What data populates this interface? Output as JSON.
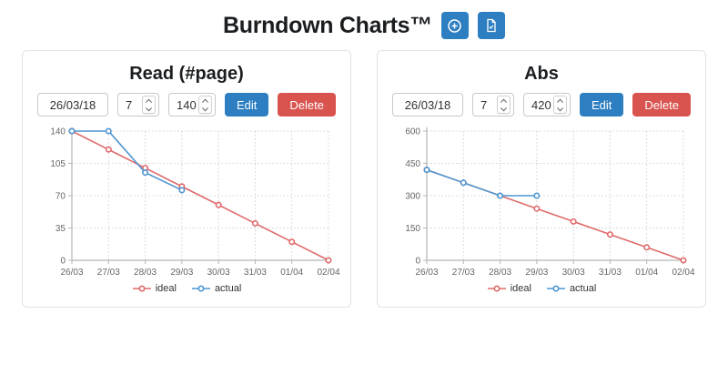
{
  "header": {
    "title": "Burndown Charts™",
    "buttons": [
      {
        "name": "add-chart",
        "icon": "plus-circle-icon"
      },
      {
        "name": "report",
        "icon": "file-check-icon"
      }
    ]
  },
  "colors": {
    "primary": "#2d7fc1",
    "danger": "#d9534f",
    "ideal": "#e06a6a",
    "actual": "#4e96d2",
    "grid": "#dcdcdc",
    "axis": "#b5b5b5",
    "tick_text": "#666666"
  },
  "cards": [
    {
      "title": "Read (#page)",
      "start_date": "26/03/18",
      "days": "7",
      "total": "140",
      "edit_label": "Edit",
      "delete_label": "Delete"
    },
    {
      "title": "Abs",
      "start_date": "26/03/18",
      "days": "7",
      "total": "420",
      "edit_label": "Edit",
      "delete_label": "Delete"
    }
  ],
  "chart_data": [
    {
      "type": "line",
      "title": "Read (#page)",
      "x": [
        "26/03",
        "27/03",
        "28/03",
        "29/03",
        "30/03",
        "31/03",
        "01/04",
        "02/04"
      ],
      "series": [
        {
          "name": "ideal",
          "color": "#e06a6a",
          "values": [
            140,
            120,
            100,
            80,
            60,
            40,
            20,
            0
          ]
        },
        {
          "name": "actual",
          "color": "#4e96d2",
          "values": [
            140,
            140,
            95,
            76
          ]
        }
      ],
      "ylim": [
        0,
        140
      ],
      "yticks": [
        0,
        35,
        70,
        105,
        140
      ],
      "grid": true,
      "legend_position": "bottom"
    },
    {
      "type": "line",
      "title": "Abs",
      "x": [
        "26/03",
        "27/03",
        "28/03",
        "29/03",
        "30/03",
        "31/03",
        "01/04",
        "02/04"
      ],
      "series": [
        {
          "name": "ideal",
          "color": "#e06a6a",
          "values": [
            420,
            360,
            300,
            240,
            180,
            120,
            60,
            0
          ]
        },
        {
          "name": "actual",
          "color": "#4e96d2",
          "values": [
            420,
            360,
            300,
            300
          ]
        }
      ],
      "ylim": [
        0,
        600
      ],
      "yticks": [
        0,
        150,
        300,
        450,
        600
      ],
      "grid": true,
      "legend_position": "bottom"
    }
  ]
}
